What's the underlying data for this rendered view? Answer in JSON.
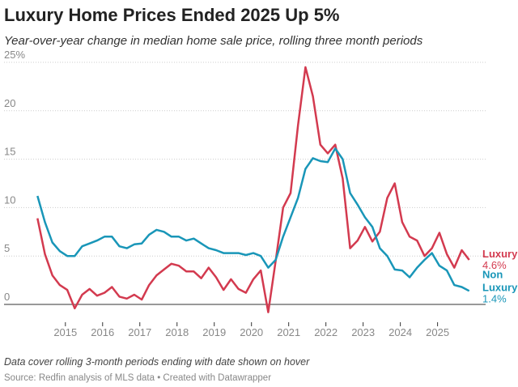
{
  "chart_data": {
    "type": "line",
    "title": "Luxury Home Prices Ended 2025 Up 5%",
    "subtitle": "Year-over-year change in median home sale price, rolling three month periods",
    "note": "Data cover rolling 3-month periods ending with date shown on hover",
    "source": "Source: Redfin analysis of MLS data • Created with Datawrapper",
    "x": [
      2014.25,
      2014.45,
      2014.65,
      2014.85,
      2015.05,
      2015.25,
      2015.45,
      2015.65,
      2015.85,
      2016.05,
      2016.25,
      2016.45,
      2016.65,
      2016.85,
      2017.05,
      2017.25,
      2017.45,
      2017.65,
      2017.85,
      2018.05,
      2018.25,
      2018.45,
      2018.65,
      2018.85,
      2019.05,
      2019.25,
      2019.45,
      2019.65,
      2019.85,
      2020.05,
      2020.25,
      2020.45,
      2020.65,
      2020.85,
      2021.05,
      2021.25,
      2021.45,
      2021.65,
      2021.85,
      2022.05,
      2022.25,
      2022.45,
      2022.65,
      2022.85,
      2023.05,
      2023.25,
      2023.45,
      2023.65,
      2023.85,
      2024.05,
      2024.25,
      2024.45,
      2024.65,
      2024.85,
      2025.05,
      2025.25,
      2025.45,
      2025.65,
      2025.85
    ],
    "series": [
      {
        "name": "Luxury",
        "color": "#d33a4f",
        "values": [
          8.9,
          5.2,
          3.0,
          2.0,
          1.5,
          -0.4,
          1.0,
          1.6,
          0.9,
          1.2,
          1.8,
          0.8,
          0.6,
          1.0,
          0.5,
          2.0,
          3.0,
          3.6,
          4.2,
          4.0,
          3.4,
          3.4,
          2.7,
          3.8,
          2.8,
          1.5,
          2.6,
          1.6,
          1.2,
          2.6,
          3.5,
          -0.8,
          4.5,
          10.0,
          11.5,
          18.5,
          24.5,
          21.5,
          16.5,
          15.6,
          16.5,
          13.0,
          5.8,
          6.6,
          8.0,
          6.5,
          7.5,
          11.0,
          12.5,
          8.5,
          7.0,
          6.6,
          5.0,
          5.8,
          7.4,
          5.2,
          3.8,
          5.6,
          4.6
        ],
        "value_labels": [
          null,
          null,
          null,
          null,
          null,
          null,
          null,
          null,
          null,
          null,
          null,
          null,
          null,
          null,
          null,
          null,
          null,
          null,
          null,
          null,
          null,
          null,
          null,
          null,
          null,
          null,
          null,
          null,
          null,
          null,
          null,
          null,
          null,
          null,
          null,
          null,
          null,
          null,
          null,
          null,
          null,
          null,
          null,
          null,
          null,
          null,
          null,
          null,
          null,
          null,
          null,
          null,
          null,
          null,
          null,
          null,
          null,
          null,
          "4.6%"
        ]
      },
      {
        "name": "Non Luxury",
        "color": "#1996b8",
        "values": [
          11.2,
          8.5,
          6.4,
          5.5,
          5.0,
          5.0,
          6.0,
          6.3,
          6.6,
          7.0,
          7.0,
          6.0,
          5.8,
          6.2,
          6.3,
          7.2,
          7.7,
          7.5,
          7.0,
          7.0,
          6.6,
          6.8,
          6.3,
          5.8,
          5.6,
          5.3,
          5.3,
          5.3,
          5.1,
          5.3,
          5.0,
          3.8,
          4.6,
          7.0,
          9.0,
          11.0,
          14.0,
          15.1,
          14.8,
          14.7,
          16.1,
          15.0,
          11.5,
          10.3,
          9.0,
          8.0,
          5.8,
          5.0,
          3.6,
          3.5,
          2.8,
          3.8,
          4.6,
          5.3,
          4.0,
          3.5,
          2.0,
          1.8,
          1.4
        ],
        "value_labels": [
          null,
          null,
          null,
          null,
          null,
          null,
          null,
          null,
          null,
          null,
          null,
          null,
          null,
          null,
          null,
          null,
          null,
          null,
          null,
          null,
          null,
          null,
          null,
          null,
          null,
          null,
          null,
          null,
          null,
          null,
          null,
          null,
          null,
          null,
          null,
          null,
          null,
          null,
          null,
          null,
          null,
          null,
          null,
          null,
          null,
          null,
          null,
          null,
          null,
          null,
          null,
          null,
          null,
          null,
          null,
          null,
          null,
          null,
          "1.4%"
        ]
      }
    ],
    "xlim": [
      2014.2,
      2025.9
    ],
    "xticks": [
      2015,
      2016,
      2017,
      2018,
      2019,
      2020,
      2021,
      2022,
      2023,
      2024,
      2025
    ],
    "ylim": [
      -2,
      25
    ],
    "yticks": [
      0,
      5,
      10,
      15,
      20,
      {
        "value": 25,
        "label": "25%"
      }
    ],
    "grid": true
  }
}
